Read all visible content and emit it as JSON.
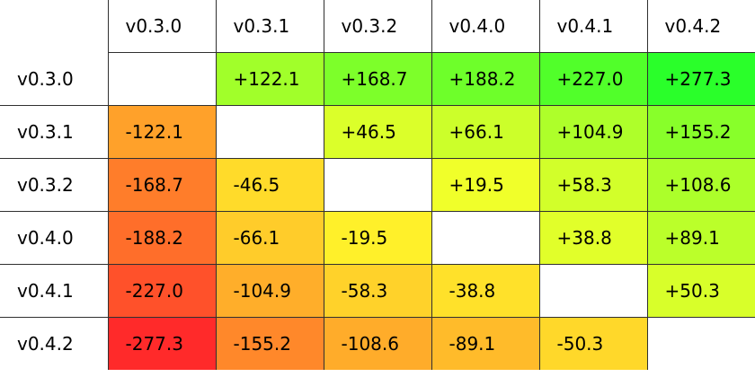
{
  "chart_data": {
    "type": "heatmap",
    "rows": [
      "v0.3.0",
      "v0.3.1",
      "v0.3.2",
      "v0.4.0",
      "v0.4.1",
      "v0.4.2"
    ],
    "columns": [
      "v0.3.0",
      "v0.3.1",
      "v0.3.2",
      "v0.4.0",
      "v0.4.1",
      "v0.4.2"
    ],
    "values": [
      [
        null,
        122.1,
        168.7,
        188.2,
        227.0,
        277.3
      ],
      [
        -122.1,
        null,
        46.5,
        66.1,
        104.9,
        155.2
      ],
      [
        -168.7,
        -46.5,
        null,
        19.5,
        58.3,
        108.6
      ],
      [
        -188.2,
        -66.1,
        -19.5,
        null,
        38.8,
        89.1
      ],
      [
        -227.0,
        -104.9,
        -58.3,
        -38.8,
        null,
        50.3
      ],
      [
        -277.3,
        -155.2,
        -108.6,
        -89.1,
        -50.3,
        null
      ]
    ],
    "cell_labels": [
      [
        "",
        "+122.1",
        "+168.7",
        "+188.2",
        "+227.0",
        "+277.3"
      ],
      [
        "-122.1",
        "",
        "+46.5",
        "+66.1",
        "+104.9",
        "+155.2"
      ],
      [
        "-168.7",
        "-46.5",
        "",
        "+19.5",
        "+58.3",
        "+108.6"
      ],
      [
        "-188.2",
        "-66.1",
        "-19.5",
        "",
        "+38.8",
        "+89.1"
      ],
      [
        "-227.0",
        "-104.9",
        "-58.3",
        "-38.8",
        "",
        "+50.3"
      ],
      [
        "-277.3",
        "-155.2",
        "-108.6",
        "-89.1",
        "-50.3",
        ""
      ]
    ],
    "color_scale": {
      "min": -277.3,
      "max": 277.3,
      "low_color": "#ff2a2a",
      "mid_color": "#ffff2a",
      "high_color": "#2aff2a",
      "empty_color": "#ffffff"
    },
    "grid_color": "#303030"
  }
}
